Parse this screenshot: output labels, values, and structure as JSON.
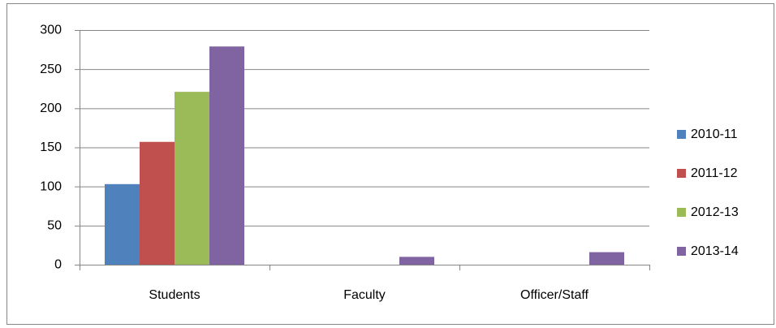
{
  "chart_data": {
    "type": "bar",
    "categories": [
      "Students",
      "Faculty",
      "Officer/Staff"
    ],
    "series": [
      {
        "name": "2010-11",
        "color": "#4f81bd",
        "values": [
          103,
          0,
          0
        ]
      },
      {
        "name": "2011-12",
        "color": "#c0504d",
        "values": [
          157,
          0,
          0
        ]
      },
      {
        "name": "2012-13",
        "color": "#9bbb59",
        "values": [
          221,
          0,
          0
        ]
      },
      {
        "name": "2013-14",
        "color": "#8064a2",
        "values": [
          279,
          10,
          16
        ]
      }
    ],
    "ylim": [
      0,
      300
    ],
    "yticks": [
      0,
      50,
      100,
      150,
      200,
      250,
      300
    ],
    "grid": true,
    "legend": "right"
  }
}
